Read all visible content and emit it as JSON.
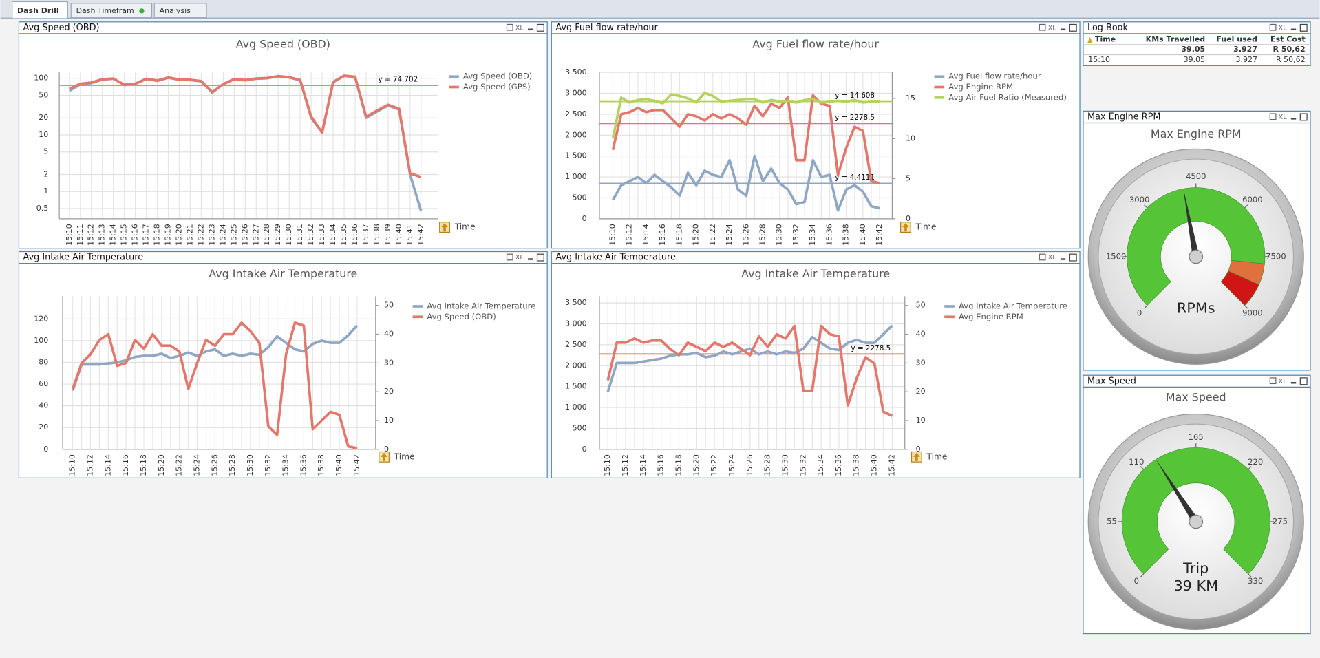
{
  "tabs": [
    "Dash Drill",
    "Dash Timefram",
    "Analysis"
  ],
  "header_icon_text": "XL",
  "log_book": {
    "title": "Log Book",
    "columns": [
      "Time",
      "KMs Travelled",
      "Fuel used",
      "Est Cost"
    ],
    "totals": [
      null,
      39.05,
      3.927,
      "R 50,62"
    ],
    "rows": [
      [
        "15:10",
        39.05,
        3.927,
        "R 50,62"
      ]
    ]
  },
  "chart_data": [
    {
      "type": "line",
      "panel_title": "Avg Speed (OBD)",
      "title": "Avg Speed (OBD)",
      "x_label": "Time",
      "categories": [
        "15:10",
        "15:11",
        "15:12",
        "15:13",
        "15:14",
        "15:15",
        "15:16",
        "15:17",
        "15:18",
        "15:19",
        "15:20",
        "15:21",
        "15:22",
        "15:23",
        "15:24",
        "15:25",
        "15:26",
        "15:27",
        "15:28",
        "15:29",
        "15:30",
        "15:31",
        "15:32",
        "15:33",
        "15:34",
        "15:35",
        "15:36",
        "15:37",
        "15:38",
        "15:39",
        "15:40",
        "15:41",
        "15:42"
      ],
      "log_scale": true,
      "ylim": [
        0.33,
        127
      ],
      "yticks": [
        0.5,
        1,
        2,
        5,
        10,
        20,
        50,
        100
      ],
      "grid": true,
      "series": [
        {
          "name": "Avg Speed (OBD)",
          "color": "#8fa7c4",
          "values": [
            60,
            78,
            82,
            95,
            98,
            77,
            80,
            97,
            90,
            102,
            94,
            93,
            88,
            57,
            78,
            96,
            92,
            98,
            100,
            108,
            103,
            92,
            20,
            11,
            85,
            110,
            105,
            20,
            26,
            33,
            28,
            2,
            0.45
          ]
        },
        {
          "name": "Avg Speed (GPS)",
          "color": "#e3776b",
          "values": [
            65,
            80,
            84,
            96,
            99,
            76,
            80,
            98,
            91,
            103,
            95,
            94,
            89,
            56,
            79,
            97,
            93,
            99,
            101,
            109,
            104,
            93,
            21,
            11,
            86,
            111,
            106,
            21,
            27,
            34,
            29,
            2.1,
            1.8
          ]
        }
      ],
      "reference_lines": [
        {
          "value": 74.702,
          "label": "y = 74.702",
          "color": "#8fa7c4"
        }
      ]
    },
    {
      "type": "line",
      "panel_title": "Avg Fuel flow rate/hour",
      "title": "Avg Fuel flow rate/hour",
      "x_label": "Time",
      "categories": [
        "15:10",
        null,
        "15:12",
        null,
        "15:14",
        null,
        "15:16",
        null,
        "15:18",
        null,
        "15:20",
        null,
        "15:22",
        null,
        "15:24",
        null,
        "15:26",
        null,
        "15:28",
        null,
        "15:30",
        null,
        "15:32",
        null,
        "15:34",
        null,
        "15:36",
        null,
        "15:38",
        null,
        "15:40",
        null,
        "15:42"
      ],
      "ylim": [
        0,
        3500
      ],
      "yticks": [
        0,
        500,
        {
          "value": 1000,
          "label": "1 000"
        },
        {
          "value": 1500,
          "label": "1 500"
        },
        {
          "value": 2000,
          "label": "2 000"
        },
        {
          "value": 2500,
          "label": "2 500"
        },
        {
          "value": 3000,
          "label": "3 000"
        },
        {
          "value": 3500,
          "label": "3 500"
        }
      ],
      "y2lim": [
        0,
        18.25
      ],
      "y2ticks": [
        0,
        5,
        10,
        15
      ],
      "grid": true,
      "series": [
        {
          "name": "Avg Fuel flow rate/hour",
          "color": "#8fa7c4",
          "axis": "y2",
          "values": [
            2.35,
            4.17,
            4.69,
            5.21,
            4.43,
            5.47,
            4.69,
            3.91,
            2.87,
            5.74,
            4.17,
            6.0,
            5.47,
            5.21,
            7.3,
            3.65,
            2.87,
            7.82,
            4.69,
            6.26,
            4.43,
            3.65,
            1.82,
            2.09,
            7.3,
            5.21,
            5.47,
            1.04,
            3.65,
            4.17,
            3.39,
            1.56,
            1.3
          ]
        },
        {
          "name": "Avg Engine RPM",
          "color": "#e3776b",
          "values": [
            1650,
            2500,
            2550,
            2650,
            2550,
            2600,
            2600,
            2400,
            2200,
            2500,
            2450,
            2350,
            2500,
            2400,
            2500,
            2400,
            2250,
            2700,
            2450,
            2750,
            2650,
            2900,
            1400,
            1400,
            2950,
            2750,
            2700,
            1050,
            1700,
            2200,
            2100,
            900,
            850
          ]
        },
        {
          "name": "Avg Air Fuel Ratio (Measured)",
          "color": "#b5d35c",
          "axis": "y2",
          "values": [
            10,
            15.1,
            14.5,
            14.8,
            14.9,
            14.7,
            14.4,
            15.5,
            15.3,
            15.0,
            14.5,
            15.7,
            15.3,
            14.6,
            14.7,
            14.8,
            14.9,
            14.9,
            14.5,
            14.8,
            14.6,
            14.7,
            14.5,
            14.8,
            14.9,
            14.5,
            14.6,
            14.7,
            14.6,
            14.8,
            14.5,
            14.6,
            14.6
          ]
        }
      ],
      "reference_lines": [
        {
          "value": 14.608,
          "label": "y = 14.608",
          "color": "#b5d35c",
          "axis": "y2"
        },
        {
          "value": 2278.5,
          "label": "y = 2278.5",
          "color": "#e3776b"
        },
        {
          "value": 4.4111,
          "label": "y = 4.4111",
          "color": "#8fa7c4",
          "axis": "y2"
        }
      ]
    },
    {
      "type": "line",
      "panel_title": "Avg Intake Air Temperature",
      "title": "Avg Intake Air Temperature",
      "x_label": "Time",
      "categories": [
        "15:10",
        null,
        "15:12",
        null,
        "15:14",
        null,
        "15:16",
        null,
        "15:18",
        null,
        "15:20",
        null,
        "15:22",
        null,
        "15:24",
        null,
        "15:26",
        null,
        "15:28",
        null,
        "15:30",
        null,
        "15:32",
        null,
        "15:34",
        null,
        "15:36",
        null,
        "15:38",
        null,
        "15:40",
        null,
        "15:42"
      ],
      "ylim": [
        0,
        140.9
      ],
      "yticks": [
        0,
        20,
        40,
        60,
        80,
        100,
        120
      ],
      "y2lim": [
        0,
        53.2
      ],
      "y2ticks": [
        0,
        10,
        20,
        30,
        40,
        50
      ],
      "grid": true,
      "series": [
        {
          "name": "Avg Intake Air Temperature",
          "color": "#8fa7c4",
          "values": [
            54,
            78,
            78,
            78,
            79,
            80,
            82,
            85,
            86,
            86,
            88,
            84,
            86,
            89,
            86,
            90,
            92,
            86,
            88,
            86,
            88,
            87,
            94,
            104,
            98,
            92,
            90,
            97,
            100,
            98,
            98,
            105,
            114
          ]
        },
        {
          "name": "Avg Speed (OBD)",
          "color": "#e3776b",
          "axis": "y2",
          "values": [
            21,
            30,
            33,
            38,
            40,
            29,
            30,
            38,
            35,
            40,
            36,
            36,
            34,
            21,
            30,
            38,
            36,
            40,
            40,
            44,
            41,
            37,
            8,
            5,
            33,
            44,
            43,
            7,
            10,
            13,
            12,
            1,
            0.4
          ]
        }
      ]
    },
    {
      "type": "line",
      "panel_title": "Avg Intake Air Temperature",
      "title": "Avg Intake Air Temperature",
      "x_label": "Time",
      "categories": [
        "15:10",
        null,
        "15:12",
        null,
        "15:14",
        null,
        "15:16",
        null,
        "15:18",
        null,
        "15:20",
        null,
        "15:22",
        null,
        "15:24",
        null,
        "15:26",
        null,
        "15:28",
        null,
        "15:30",
        null,
        "15:32",
        null,
        "15:34",
        null,
        "15:36",
        null,
        "15:38",
        null,
        "15:40",
        null,
        "15:42"
      ],
      "ylim": [
        0,
        3661
      ],
      "yticks": [
        0,
        500,
        {
          "value": 1000,
          "label": "1 000"
        },
        {
          "value": 1500,
          "label": "1 500"
        },
        {
          "value": 2000,
          "label": "2 000"
        },
        {
          "value": 2500,
          "label": "2 500"
        },
        {
          "value": 3000,
          "label": "3 000"
        },
        {
          "value": 3500,
          "label": "3 500"
        }
      ],
      "y2lim": [
        0,
        53.2
      ],
      "y2ticks": [
        0,
        10,
        20,
        30,
        40,
        50
      ],
      "grid": true,
      "series": [
        {
          "name": "Avg Intake Air Temperature",
          "color": "#8fa7c4",
          "axis": "y2",
          "values": [
            20,
            30,
            30,
            30,
            30.5,
            31,
            31.5,
            32.5,
            33,
            33,
            33.5,
            32,
            32.5,
            34,
            33,
            34,
            35,
            33,
            34,
            33,
            34,
            33.5,
            35,
            39,
            37,
            35,
            34.5,
            37,
            38,
            37,
            37,
            40,
            43
          ]
        },
        {
          "name": "Avg Engine RPM",
          "color": "#e3776b",
          "values": [
            1650,
            2550,
            2550,
            2650,
            2550,
            2600,
            2600,
            2400,
            2250,
            2550,
            2450,
            2350,
            2550,
            2450,
            2550,
            2400,
            2250,
            2700,
            2450,
            2750,
            2650,
            2950,
            1400,
            1400,
            2950,
            2750,
            2700,
            1050,
            1700,
            2200,
            2050,
            900,
            800
          ]
        }
      ],
      "reference_lines": [
        {
          "value": 2278.5,
          "label": "y = 2278.5",
          "color": "#e3776b"
        }
      ]
    },
    {
      "type": "gauge",
      "panel_title": "Max Engine RPM",
      "title": "Max Engine RPM",
      "range": [
        0,
        9000
      ],
      "ticks": [
        0,
        1500,
        3000,
        4500,
        6000,
        7500,
        9000
      ],
      "value": 4150,
      "bands": [
        {
          "from": 0,
          "to": 7700,
          "color": "#55c437"
        },
        {
          "from": 7700,
          "to": 8300,
          "color": "#e0703e"
        },
        {
          "from": 8300,
          "to": 9000,
          "color": "#d11414"
        }
      ],
      "labels": [
        "RPMs"
      ]
    },
    {
      "type": "gauge",
      "panel_title": "Max Speed",
      "title": "Max Speed",
      "range": [
        0,
        330
      ],
      "ticks": [
        0,
        55,
        110,
        165,
        220,
        275,
        330
      ],
      "value": 125,
      "bands": [
        {
          "from": 0,
          "to": 330,
          "color": "#55c437"
        }
      ],
      "labels": [
        "Trip",
        "39 KM"
      ]
    }
  ]
}
